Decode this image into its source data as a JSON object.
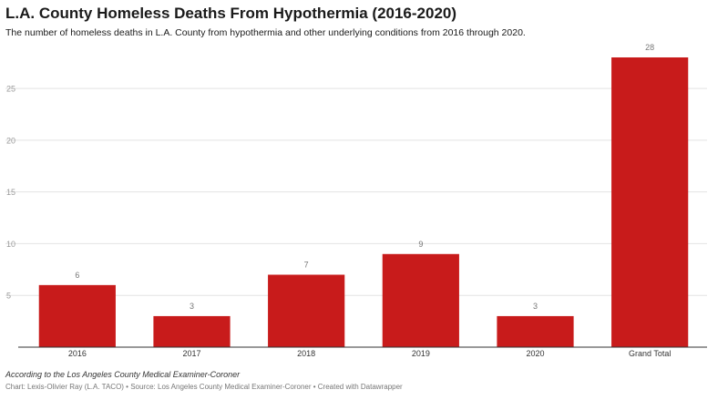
{
  "header": {
    "title": "L.A. County Homeless Deaths From Hypothermia (2016-2020)",
    "subtitle": "The number of homeless deaths in L.A. County from hypothermia and other underlying conditions from 2016 through 2020."
  },
  "chart_data": {
    "type": "bar",
    "categories": [
      "2016",
      "2017",
      "2018",
      "2019",
      "2020",
      "Grand Total"
    ],
    "values": [
      6,
      3,
      7,
      9,
      3,
      28
    ],
    "ylim": [
      0,
      28
    ],
    "yticks": [
      5,
      10,
      15,
      20,
      25
    ],
    "grid": true,
    "bar_color": "#c81b1b",
    "data_labels": true
  },
  "footer": {
    "note": "According to the Los Angeles County Medical Examiner-Coroner",
    "credit": "Chart: Lexis-Olivier Ray (L.A. TACO) • Source: Los Angeles County Medical Examiner-Coroner • Created with Datawrapper"
  }
}
